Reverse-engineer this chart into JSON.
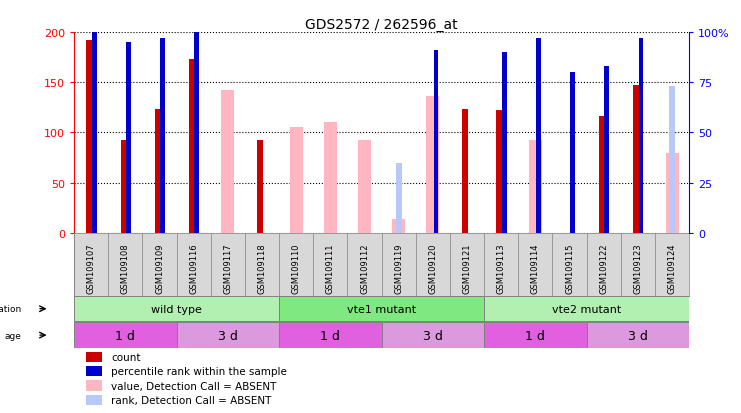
{
  "title": "GDS2572 / 262596_at",
  "samples": [
    "GSM109107",
    "GSM109108",
    "GSM109109",
    "GSM109116",
    "GSM109117",
    "GSM109118",
    "GSM109110",
    "GSM109111",
    "GSM109112",
    "GSM109119",
    "GSM109120",
    "GSM109121",
    "GSM109113",
    "GSM109114",
    "GSM109115",
    "GSM109122",
    "GSM109123",
    "GSM109124"
  ],
  "count_values": [
    192,
    93,
    123,
    173,
    null,
    93,
    null,
    null,
    null,
    null,
    null,
    123,
    122,
    null,
    null,
    116,
    147,
    null
  ],
  "rank_values": [
    113,
    95,
    97,
    103,
    null,
    null,
    null,
    null,
    null,
    null,
    91,
    null,
    90,
    97,
    80,
    83,
    97,
    null
  ],
  "pink_value": [
    null,
    null,
    null,
    null,
    142,
    null,
    105,
    110,
    93,
    14,
    136,
    null,
    null,
    93,
    null,
    null,
    null,
    80
  ],
  "light_blue_value": [
    null,
    null,
    null,
    null,
    null,
    null,
    null,
    null,
    null,
    35,
    null,
    null,
    null,
    null,
    null,
    null,
    null,
    73
  ],
  "genotype_groups": [
    {
      "label": "wild type",
      "start": 0,
      "end": 6,
      "color": "#b2f0b2"
    },
    {
      "label": "vte1 mutant",
      "start": 6,
      "end": 12,
      "color": "#80e880"
    },
    {
      "label": "vte2 mutant",
      "start": 12,
      "end": 18,
      "color": "#b2f0b2"
    }
  ],
  "age_groups": [
    {
      "label": "1 d",
      "start": 0,
      "end": 3,
      "color": "#e060e0"
    },
    {
      "label": "3 d",
      "start": 3,
      "end": 6,
      "color": "#dd99dd"
    },
    {
      "label": "1 d",
      "start": 6,
      "end": 9,
      "color": "#e060e0"
    },
    {
      "label": "3 d",
      "start": 9,
      "end": 12,
      "color": "#dd99dd"
    },
    {
      "label": "1 d",
      "start": 12,
      "end": 15,
      "color": "#e060e0"
    },
    {
      "label": "3 d",
      "start": 15,
      "end": 18,
      "color": "#dd99dd"
    }
  ],
  "ylim": [
    0,
    200
  ],
  "yticks": [
    0,
    50,
    100,
    150,
    200
  ],
  "y2ticks": [
    0,
    25,
    50,
    75,
    100
  ],
  "bar_color_count": "#CC0000",
  "bar_color_rank": "#0000CC",
  "bar_color_pink": "#FFB6C1",
  "bar_color_lightblue": "#b8c8f8",
  "legend_items": [
    {
      "label": "count",
      "color": "#CC0000"
    },
    {
      "label": "percentile rank within the sample",
      "color": "#0000CC"
    },
    {
      "label": "value, Detection Call = ABSENT",
      "color": "#FFB6C1"
    },
    {
      "label": "rank, Detection Call = ABSENT",
      "color": "#b8c8f8"
    }
  ]
}
